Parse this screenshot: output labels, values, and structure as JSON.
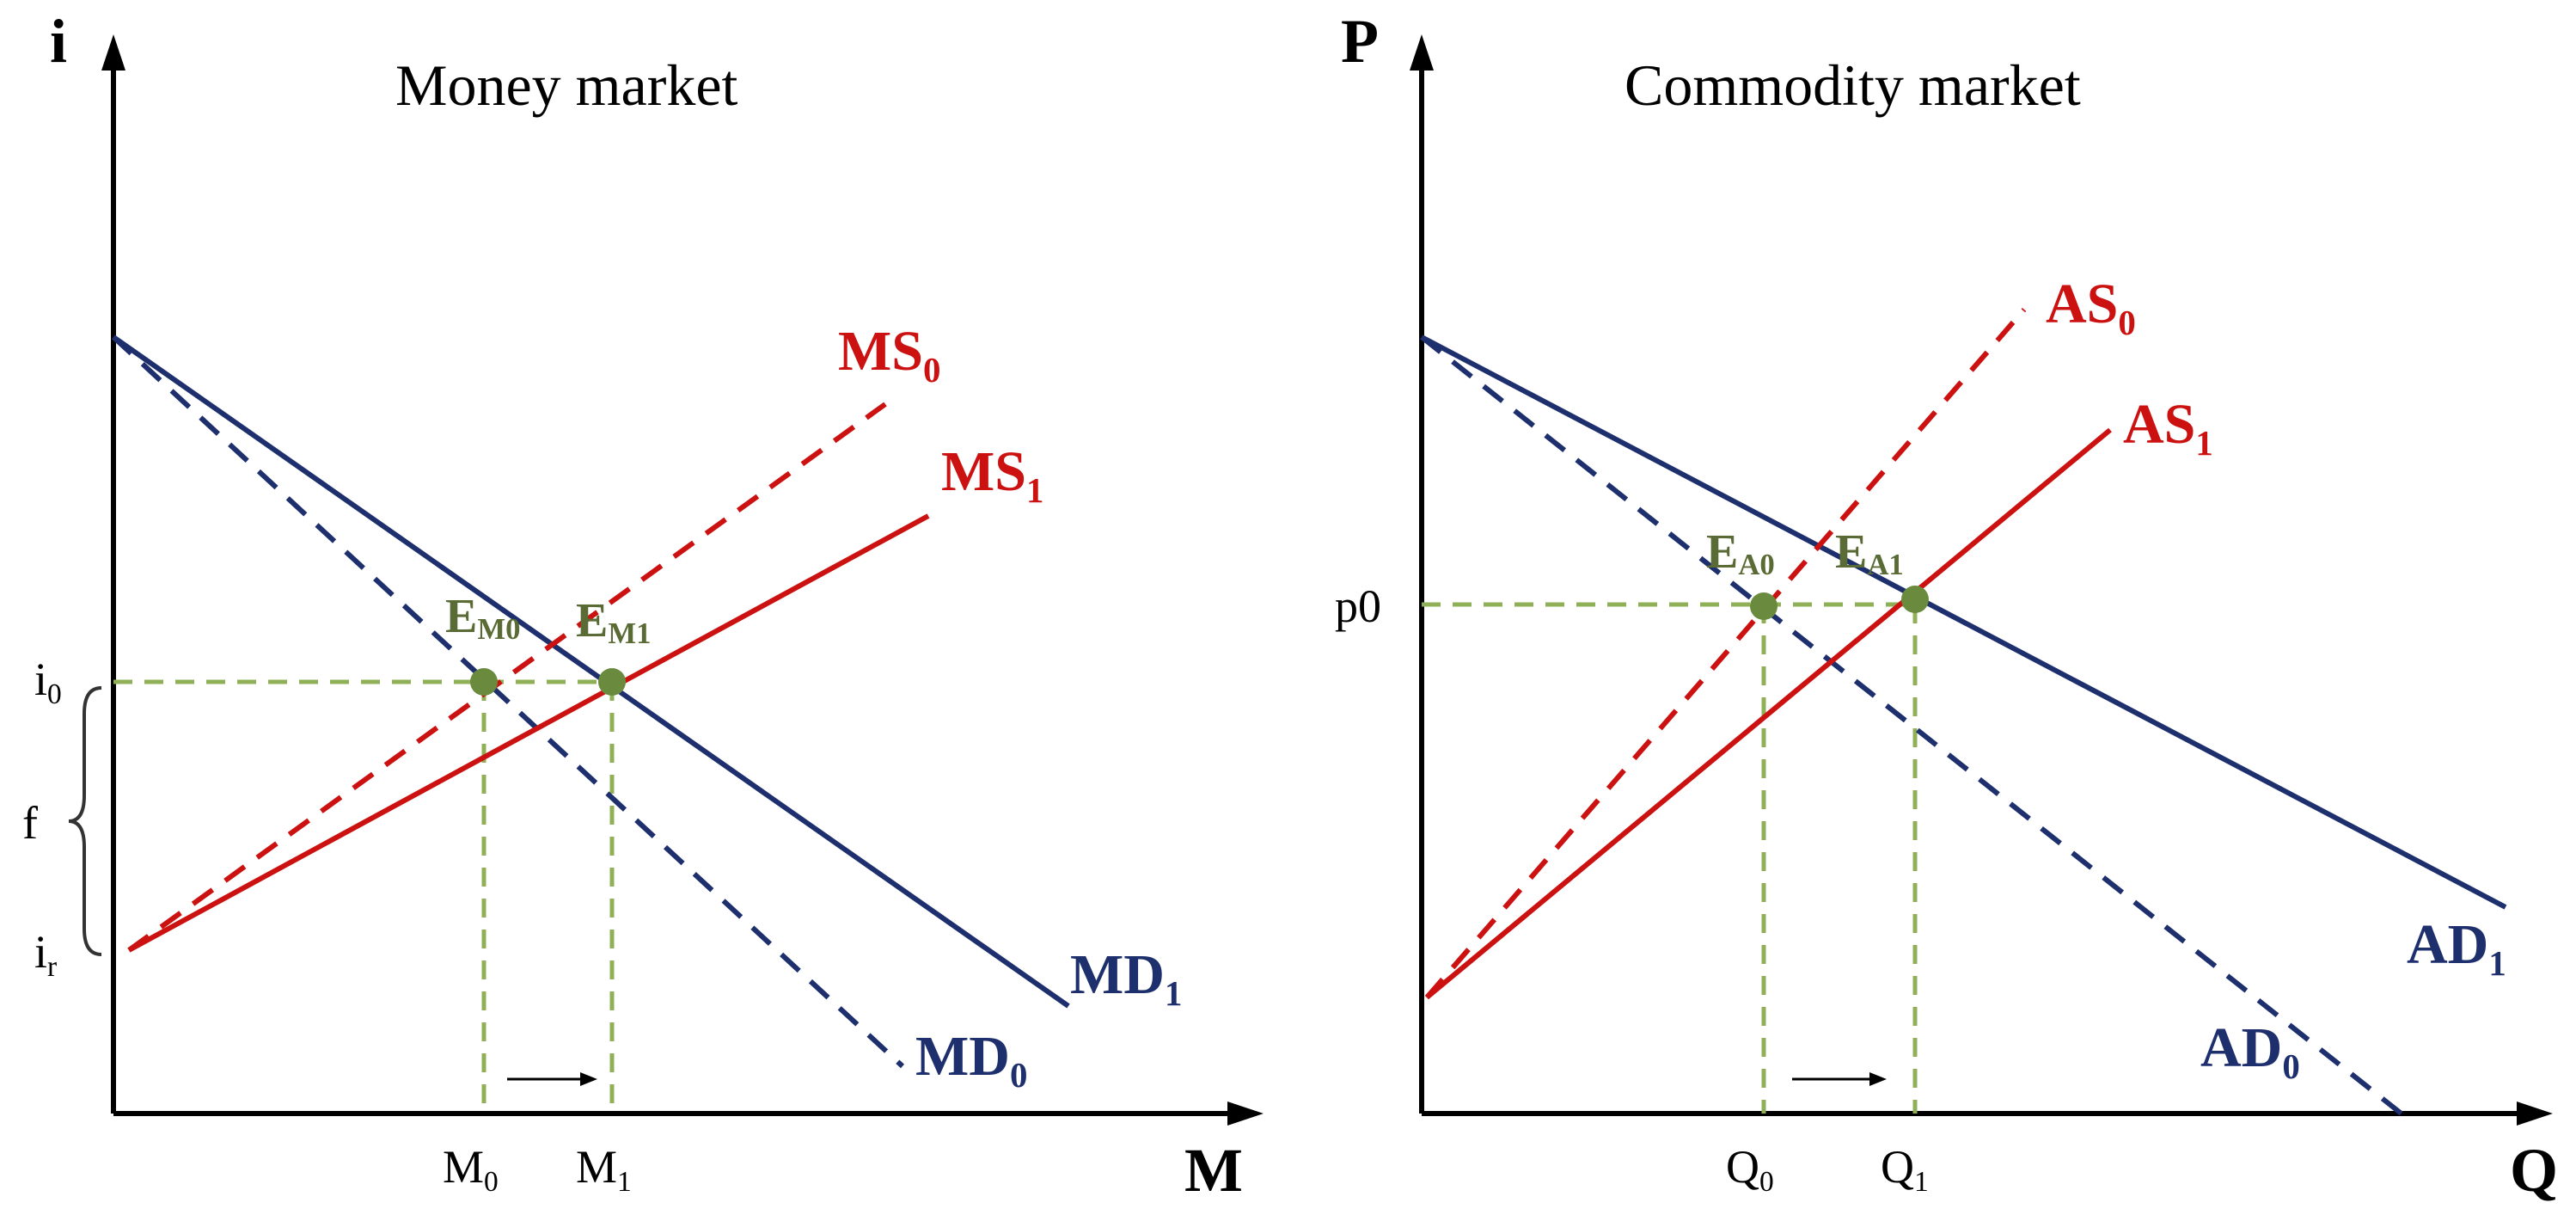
{
  "colors": {
    "supply": "#cc1111",
    "demand": "#1e2f6e",
    "guide": "#8fb056",
    "equilibrium": "#6a8b3d",
    "axis": "#000000"
  },
  "money_market": {
    "title": "Money market",
    "y_axis": "i",
    "x_axis": "M",
    "ticks": {
      "i0": {
        "main": "i",
        "sub": "0"
      },
      "ir": {
        "main": "i",
        "sub": "r"
      },
      "f": "f",
      "M0": {
        "main": "M",
        "sub": "0"
      },
      "M1": {
        "main": "M",
        "sub": "1"
      }
    },
    "curves": {
      "MS0": {
        "main": "MS",
        "sub": "0"
      },
      "MS1": {
        "main": "MS",
        "sub": "1"
      },
      "MD0": {
        "main": "MD",
        "sub": "0"
      },
      "MD1": {
        "main": "MD",
        "sub": "1"
      }
    },
    "equilibria": {
      "EM0": {
        "main": "E",
        "sub": "M0"
      },
      "EM1": {
        "main": "E",
        "sub": "M1"
      }
    }
  },
  "commodity_market": {
    "title": "Commodity market",
    "y_axis": "P",
    "x_axis": "Q",
    "ticks": {
      "p0": "p0",
      "Q0": {
        "main": "Q",
        "sub": "0"
      },
      "Q1": {
        "main": "Q",
        "sub": "1"
      }
    },
    "curves": {
      "AS0": {
        "main": "AS",
        "sub": "0"
      },
      "AS1": {
        "main": "AS",
        "sub": "1"
      },
      "AD0": {
        "main": "AD",
        "sub": "0"
      },
      "AD1": {
        "main": "AD",
        "sub": "1"
      }
    },
    "equilibria": {
      "EA0": {
        "main": "E",
        "sub": "A0"
      },
      "EA1": {
        "main": "E",
        "sub": "A1"
      }
    }
  }
}
